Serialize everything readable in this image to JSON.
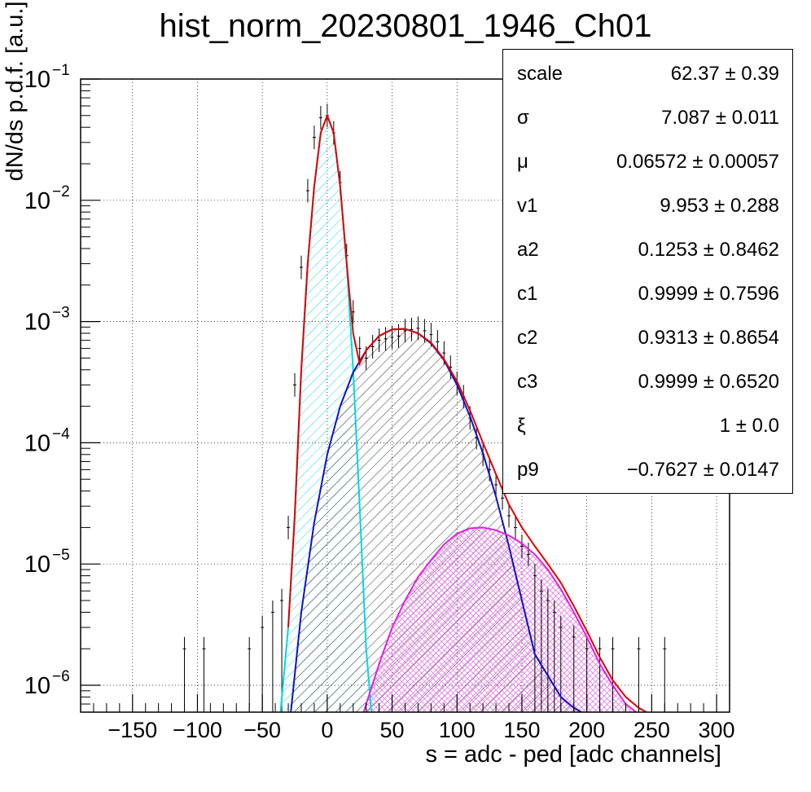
{
  "chart_data": {
    "type": "line",
    "title": "hist_norm_20230801_1946_Ch01",
    "xlabel": "s = adc - ped [adc channels]",
    "ylabel": "dN/ds p.d.f. [a.u.]",
    "log_y": true,
    "grid": true,
    "xlim": [
      -190,
      310
    ],
    "ylim": [
      6e-07,
      0.1
    ],
    "x_ticks": [
      "−150",
      "−100",
      "−50",
      "0",
      "50",
      "100",
      "150",
      "200",
      "250",
      "300"
    ],
    "x_tick_values": [
      -150,
      -100,
      -50,
      0,
      50,
      100,
      150,
      200,
      250,
      300
    ],
    "y_ticks": [
      {
        "base": "10",
        "exp": "−6",
        "value": 1e-06
      },
      {
        "base": "10",
        "exp": "−5",
        "value": 1e-05
      },
      {
        "base": "10",
        "exp": "−4",
        "value": 0.0001
      },
      {
        "base": "10",
        "exp": "−3",
        "value": 0.001
      },
      {
        "base": "10",
        "exp": "−2",
        "value": 0.01
      },
      {
        "base": "10",
        "exp": "−1",
        "value": 0.1
      }
    ],
    "series": [
      {
        "color": "#00d8e0",
        "fill": "hatched",
        "x": [
          -36,
          -30,
          -25,
          -20,
          -15,
          -10,
          -5,
          0,
          5,
          10,
          15,
          20,
          25,
          30,
          34
        ],
        "y": [
          6e-07,
          3e-06,
          2.5e-05,
          0.0004,
          0.003,
          0.013,
          0.036,
          0.05,
          0.036,
          0.013,
          0.003,
          0.0004,
          3e-05,
          2e-06,
          6e-07
        ]
      },
      {
        "color": "#1010c8",
        "fill": "hatched",
        "x": [
          -28,
          -20,
          -10,
          0,
          10,
          20,
          30,
          40,
          50,
          60,
          70,
          80,
          90,
          100,
          110,
          120,
          130,
          140,
          150,
          160,
          170,
          180,
          190,
          196
        ],
        "y": [
          6e-07,
          4e-06,
          2.2e-05,
          8e-05,
          0.0002,
          0.00038,
          0.00058,
          0.00076,
          0.00086,
          0.00087,
          0.0008,
          0.00066,
          0.00048,
          0.0003,
          0.000165,
          8.2e-05,
          3.6e-05,
          1.4e-05,
          5e-06,
          1.8e-06,
          1.2e-06,
          8e-07,
          6.5e-07,
          6e-07
        ]
      },
      {
        "color": "#e020e0",
        "fill": "cross-hatched",
        "x": [
          28,
          40,
          50,
          60,
          70,
          80,
          90,
          100,
          110,
          120,
          130,
          140,
          150,
          160,
          170,
          180,
          190,
          200,
          210,
          220,
          230,
          238
        ],
        "y": [
          6e-07,
          1.5e-06,
          3e-06,
          5e-06,
          7.8e-06,
          1.08e-05,
          1.45e-05,
          1.78e-05,
          1.97e-05,
          2e-05,
          1.9e-05,
          1.72e-05,
          1.48e-05,
          1.2e-05,
          9e-06,
          6.2e-06,
          4e-06,
          2.5e-06,
          1.5e-06,
          1e-06,
          7e-07,
          6e-07
        ]
      },
      {
        "color": "#e00000",
        "fill": "none",
        "x": [
          -30,
          -25,
          -20,
          -15,
          -10,
          -5,
          0,
          5,
          10,
          15,
          20,
          25,
          30,
          40,
          50,
          60,
          70,
          80,
          90,
          100,
          110,
          120,
          130,
          140,
          150,
          160,
          170,
          180,
          190,
          200,
          210,
          220,
          230,
          240,
          246
        ],
        "y": [
          3e-06,
          2.5e-05,
          0.0004,
          0.003,
          0.013,
          0.036,
          0.05,
          0.036,
          0.013,
          0.003,
          0.0008,
          0.00045,
          0.00058,
          0.00076,
          0.00086,
          0.00087,
          0.0008,
          0.00067,
          0.00049,
          0.00032,
          0.000185,
          0.0001,
          5.5e-05,
          3.1e-05,
          2e-05,
          1.4e-05,
          1e-05,
          7e-06,
          4.5e-06,
          2.8e-06,
          1.7e-06,
          1.1e-06,
          8e-07,
          6.5e-07,
          6e-07
        ]
      }
    ],
    "histogram_points": {
      "color": "#000000",
      "x": [
        -110,
        -95,
        -60,
        -50,
        -42,
        -35,
        -30,
        -25,
        -20,
        -15,
        -10,
        -5,
        0,
        5,
        10,
        15,
        20,
        25,
        30,
        35,
        40,
        45,
        50,
        55,
        60,
        65,
        70,
        75,
        80,
        85,
        90,
        95,
        100,
        105,
        110,
        115,
        120,
        125,
        130,
        135,
        140,
        145,
        150,
        155,
        160,
        165,
        170,
        175,
        180,
        190,
        200,
        210,
        220,
        240,
        260
      ],
      "y": [
        2e-06,
        2e-06,
        2e-06,
        3e-06,
        4e-06,
        5e-06,
        2e-05,
        0.0003,
        0.0028,
        0.012,
        0.033,
        0.048,
        0.05,
        0.036,
        0.014,
        0.0035,
        0.0012,
        0.0006,
        0.0005,
        0.00062,
        0.0007,
        0.00072,
        0.00074,
        0.00076,
        0.00084,
        0.00086,
        0.00088,
        0.00084,
        0.00078,
        0.00068,
        0.00055,
        0.00042,
        0.00031,
        0.00024,
        0.00016,
        0.00011,
        8e-05,
        6e-05,
        4.5e-05,
        3.5e-05,
        2.5e-05,
        2e-05,
        1.4e-05,
        1.2e-05,
        8e-06,
        6e-06,
        5e-06,
        4e-06,
        3e-06,
        2.5e-06,
        2e-06,
        2e-06,
        2e-06,
        2e-06,
        2e-06
      ]
    }
  },
  "stats_box": {
    "rows": [
      {
        "name": "scale",
        "value": "62.37 ± 0.39"
      },
      {
        "name": "σ",
        "value": "7.087 ± 0.011"
      },
      {
        "name": "μ",
        "value": "0.06572 ± 0.00057"
      },
      {
        "name": "v1",
        "value": "9.953 ± 0.288"
      },
      {
        "name": "a2",
        "value": "0.1253 ± 0.8462"
      },
      {
        "name": "c1",
        "value": "0.9999 ± 0.7596"
      },
      {
        "name": "c2",
        "value": "0.9313 ± 0.8654"
      },
      {
        "name": "c3",
        "value": "0.9999 ± 0.6520"
      },
      {
        "name": "ξ",
        "value": "1 ± 0.0"
      },
      {
        "name": "p9",
        "value": "−0.7627 ± 0.0147"
      }
    ]
  }
}
